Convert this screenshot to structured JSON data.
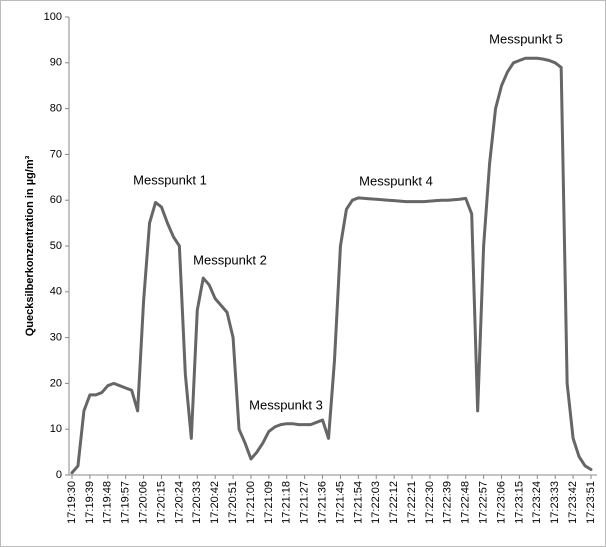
{
  "chart_data": {
    "type": "line",
    "ylabel": "Quecksilberkonzentration in µg/m³",
    "categories": [
      "17:19:30",
      null,
      null,
      "17:19:39",
      null,
      null,
      "17:19:48",
      null,
      null,
      "17:19:57",
      null,
      null,
      "17:20:06",
      null,
      null,
      "17:20:15",
      null,
      null,
      "17:20:24",
      null,
      null,
      "17:20:33",
      null,
      null,
      "17:20:42",
      null,
      null,
      "17:20:51",
      null,
      null,
      "17:21:00",
      null,
      null,
      "17:21:09",
      null,
      null,
      "17:21:18",
      null,
      null,
      "17:21:27",
      null,
      null,
      "17:21:36",
      null,
      null,
      "17:21:45",
      null,
      null,
      "17:21:54",
      null,
      null,
      "17:22:03",
      null,
      null,
      "17:22:12",
      null,
      null,
      "17:22:21",
      null,
      null,
      "17:22:30",
      null,
      null,
      "17:22:39",
      null,
      null,
      "17:22:48",
      null,
      null,
      "17:22:57",
      null,
      null,
      "17:23:06",
      null,
      null,
      "17:23:15",
      null,
      null,
      "17:23:24",
      null,
      null,
      "17:23:33",
      null,
      null,
      "17:23:42",
      null,
      null,
      "17:23:51"
    ],
    "values": [
      0.5,
      2,
      14,
      17.5,
      17.5,
      18,
      19.5,
      20,
      19.5,
      19,
      18.5,
      14,
      38,
      55,
      59.5,
      58.5,
      55,
      52,
      50,
      22,
      8,
      36,
      43,
      41.5,
      38.5,
      37,
      35.5,
      30,
      10,
      7,
      3.5,
      5,
      7,
      9.5,
      10.5,
      11,
      11.2,
      11.2,
      11,
      11,
      11,
      11.5,
      12,
      8,
      25,
      50,
      58,
      60,
      60.5,
      60.4,
      60.3,
      60.2,
      60.1,
      60,
      59.9,
      59.8,
      59.7,
      59.7,
      59.7,
      59.7,
      59.8,
      59.9,
      60,
      60,
      60.1,
      60.2,
      60.4,
      57,
      14,
      50,
      68,
      80,
      85,
      88,
      90,
      90.5,
      91,
      91,
      91,
      90.8,
      90.5,
      90,
      89,
      20,
      8,
      4,
      2,
      1.2
    ],
    "color": "#666666",
    "ylim": [
      0,
      100
    ],
    "yticks": [
      0,
      10,
      20,
      30,
      40,
      50,
      60,
      70,
      80,
      90,
      100
    ],
    "grid": false,
    "annotations": [
      "Messpunkt 1",
      "Messpunkt 2",
      "Messpunkt 3",
      "Messpunkt 4",
      "Messpunkt 5"
    ]
  }
}
